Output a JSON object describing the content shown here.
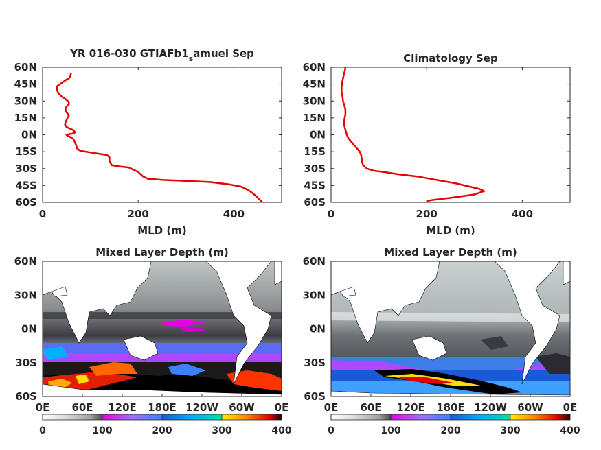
{
  "chart_data": [
    {
      "type": "line",
      "title_main": "YR 016-030 GTIAFb1",
      "title_sub": "s",
      "title_tail": "amuel Sep",
      "xlabel": "MLD (m)",
      "xlim": [
        0,
        500
      ],
      "ylim": [
        -60,
        60
      ],
      "x_ticks": [
        "0",
        "200",
        "400"
      ],
      "y_ticks": [
        "60N",
        "45N",
        "30N",
        "15N",
        "0N",
        "15S",
        "30S",
        "45S",
        "60S"
      ],
      "color": "#e60000",
      "points": [
        [
          60,
          55
        ],
        [
          59,
          54
        ],
        [
          58,
          52
        ],
        [
          55,
          50
        ],
        [
          50,
          49
        ],
        [
          45,
          47.5
        ],
        [
          40,
          46
        ],
        [
          35,
          44.5
        ],
        [
          30,
          43
        ],
        [
          30,
          40
        ],
        [
          33,
          37
        ],
        [
          40,
          34
        ],
        [
          50,
          31
        ],
        [
          55,
          29
        ],
        [
          55,
          27
        ],
        [
          50,
          25
        ],
        [
          48,
          23
        ],
        [
          48,
          21
        ],
        [
          52,
          19
        ],
        [
          55,
          17
        ],
        [
          52,
          15
        ],
        [
          50,
          13
        ],
        [
          48,
          11
        ],
        [
          47,
          9
        ],
        [
          50,
          7
        ],
        [
          55,
          6
        ],
        [
          60,
          5
        ],
        [
          65,
          4
        ],
        [
          68,
          2
        ],
        [
          63,
          1
        ],
        [
          55,
          0.5
        ],
        [
          50,
          0
        ],
        [
          52,
          -1
        ],
        [
          58,
          -2
        ],
        [
          62,
          -3
        ],
        [
          65,
          -4
        ],
        [
          67,
          -6
        ],
        [
          70,
          -9
        ],
        [
          72,
          -12
        ],
        [
          78,
          -14
        ],
        [
          90,
          -15
        ],
        [
          120,
          -17
        ],
        [
          135,
          -18
        ],
        [
          140,
          -20
        ],
        [
          140,
          -23
        ],
        [
          142,
          -25
        ],
        [
          145,
          -27
        ],
        [
          160,
          -28
        ],
        [
          180,
          -29
        ],
        [
          190,
          -31
        ],
        [
          200,
          -33
        ],
        [
          205,
          -35
        ],
        [
          210,
          -37
        ],
        [
          220,
          -39
        ],
        [
          250,
          -40
        ],
        [
          300,
          -41
        ],
        [
          350,
          -42
        ],
        [
          390,
          -44
        ],
        [
          415,
          -46
        ],
        [
          430,
          -49
        ],
        [
          440,
          -52
        ],
        [
          448,
          -55
        ],
        [
          455,
          -58
        ],
        [
          460,
          -60
        ]
      ]
    },
    {
      "type": "line",
      "title": "Climatology Sep",
      "xlabel": "MLD (m)",
      "xlim": [
        0,
        500
      ],
      "ylim": [
        -60,
        60
      ],
      "x_ticks": [
        "0",
        "200",
        "400"
      ],
      "y_ticks": [
        "60N",
        "45N",
        "30N",
        "15N",
        "0N",
        "15S",
        "30S",
        "45S",
        "60S"
      ],
      "color": "#e60000",
      "points": [
        [
          30,
          60
        ],
        [
          29,
          57
        ],
        [
          27,
          54
        ],
        [
          25,
          50
        ],
        [
          23,
          46
        ],
        [
          22,
          42
        ],
        [
          22,
          38
        ],
        [
          24,
          34
        ],
        [
          25,
          30
        ],
        [
          28,
          26
        ],
        [
          30,
          22
        ],
        [
          30,
          18
        ],
        [
          28,
          14
        ],
        [
          27,
          10
        ],
        [
          29,
          6
        ],
        [
          31,
          3
        ],
        [
          33,
          0
        ],
        [
          36,
          -3
        ],
        [
          42,
          -6
        ],
        [
          48,
          -9
        ],
        [
          54,
          -12
        ],
        [
          60,
          -15
        ],
        [
          63,
          -18
        ],
        [
          64,
          -21
        ],
        [
          65,
          -24
        ],
        [
          67,
          -27
        ],
        [
          75,
          -30
        ],
        [
          90,
          -32
        ],
        [
          110,
          -33
        ],
        [
          140,
          -35
        ],
        [
          180,
          -37
        ],
        [
          220,
          -40
        ],
        [
          260,
          -43
        ],
        [
          290,
          -46
        ],
        [
          310,
          -48
        ],
        [
          320,
          -50
        ],
        [
          300,
          -53
        ],
        [
          250,
          -56
        ],
        [
          210,
          -58
        ],
        [
          200,
          -59
        ]
      ]
    },
    {
      "type": "heatmap",
      "title": "Mixed Layer Depth (m)",
      "x_ticks": [
        "0E",
        "60E",
        "120E",
        "180E",
        "120W",
        "60W",
        "0E"
      ],
      "y_ticks": [
        "60N",
        "30N",
        "0N",
        "30S",
        "60S"
      ],
      "colorbar_ticks": [
        "0",
        "100",
        "200",
        "300",
        "400"
      ],
      "colorbar_range": [
        0,
        400
      ]
    },
    {
      "type": "heatmap",
      "title": "Mixed Layer Depth (m)",
      "x_ticks": [
        "0E",
        "60E",
        "120E",
        "180E",
        "120W",
        "60W",
        "0E"
      ],
      "y_ticks": [
        "60N",
        "30N",
        "0N",
        "30S",
        "60S"
      ],
      "colorbar_ticks": [
        "0",
        "100",
        "200",
        "300",
        "400"
      ],
      "colorbar_range": [
        0,
        400
      ]
    }
  ]
}
